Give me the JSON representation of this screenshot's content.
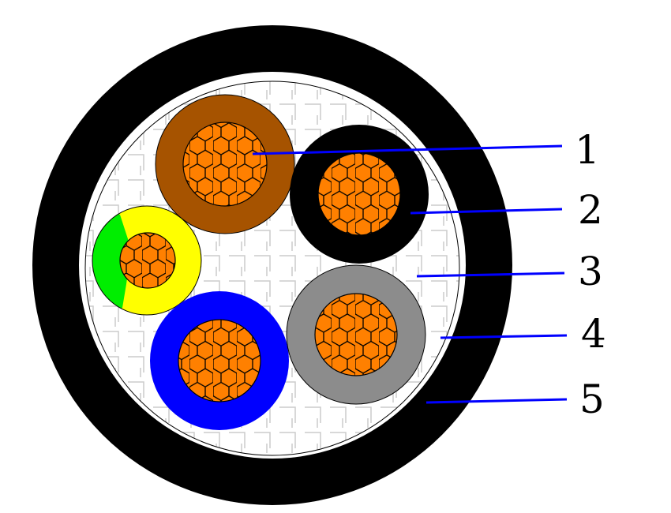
{
  "diagram": {
    "labels": [
      "1",
      "2",
      "3",
      "4",
      "5"
    ],
    "colors": {
      "sheath": "#000000",
      "bedding": "#ffffff",
      "leader_line": "#0000ff",
      "copper": "#ff8000",
      "core_brown": "#a65300",
      "core_black": "#000000",
      "core_blue": "#0000ff",
      "core_gray": "#8c8c8c",
      "core_yellow": "#ffff00",
      "core_green": "#00ee00",
      "filler_grid": "#cccccc"
    }
  }
}
